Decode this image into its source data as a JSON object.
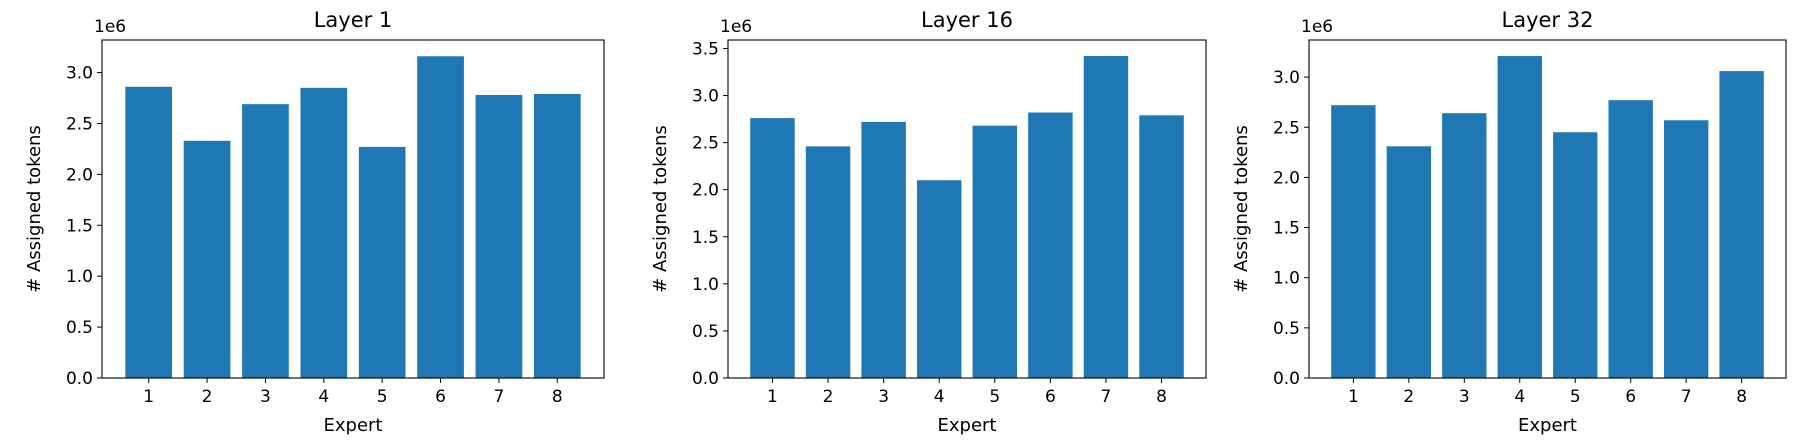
{
  "chart_data": [
    {
      "type": "bar",
      "title": "Layer 1",
      "xlabel": "Expert",
      "ylabel": "# Assigned tokens",
      "y_multiplier": "1e6",
      "categories": [
        "1",
        "2",
        "3",
        "4",
        "5",
        "6",
        "7",
        "8"
      ],
      "values": [
        2.86,
        2.33,
        2.69,
        2.85,
        2.27,
        3.16,
        2.78,
        2.79
      ],
      "ylim": [
        0,
        3.32
      ],
      "yticks": [
        "0.0",
        "0.5",
        "1.0",
        "1.5",
        "2.0",
        "2.5",
        "3.0"
      ],
      "grid": false,
      "color": "#1f77b4"
    },
    {
      "type": "bar",
      "title": "Layer 16",
      "xlabel": "Expert",
      "ylabel": "# Assigned tokens",
      "y_multiplier": "1e6",
      "categories": [
        "1",
        "2",
        "3",
        "4",
        "5",
        "6",
        "7",
        "8"
      ],
      "values": [
        2.76,
        2.46,
        2.72,
        2.1,
        2.68,
        2.82,
        3.42,
        2.79
      ],
      "ylim": [
        0,
        3.59
      ],
      "yticks": [
        "0.0",
        "0.5",
        "1.0",
        "1.5",
        "2.0",
        "2.5",
        "3.0",
        "3.5"
      ],
      "grid": false,
      "color": "#1f77b4"
    },
    {
      "type": "bar",
      "title": "Layer 32",
      "xlabel": "Expert",
      "ylabel": "# Assigned tokens",
      "y_multiplier": "1e6",
      "categories": [
        "1",
        "2",
        "3",
        "4",
        "5",
        "6",
        "7",
        "8"
      ],
      "values": [
        2.72,
        2.31,
        2.64,
        3.21,
        2.45,
        2.77,
        2.57,
        3.06
      ],
      "ylim": [
        0,
        3.37
      ],
      "yticks": [
        "0.0",
        "0.5",
        "1.0",
        "1.5",
        "2.0",
        "2.5",
        "3.0"
      ],
      "grid": false,
      "color": "#1f77b4"
    }
  ]
}
